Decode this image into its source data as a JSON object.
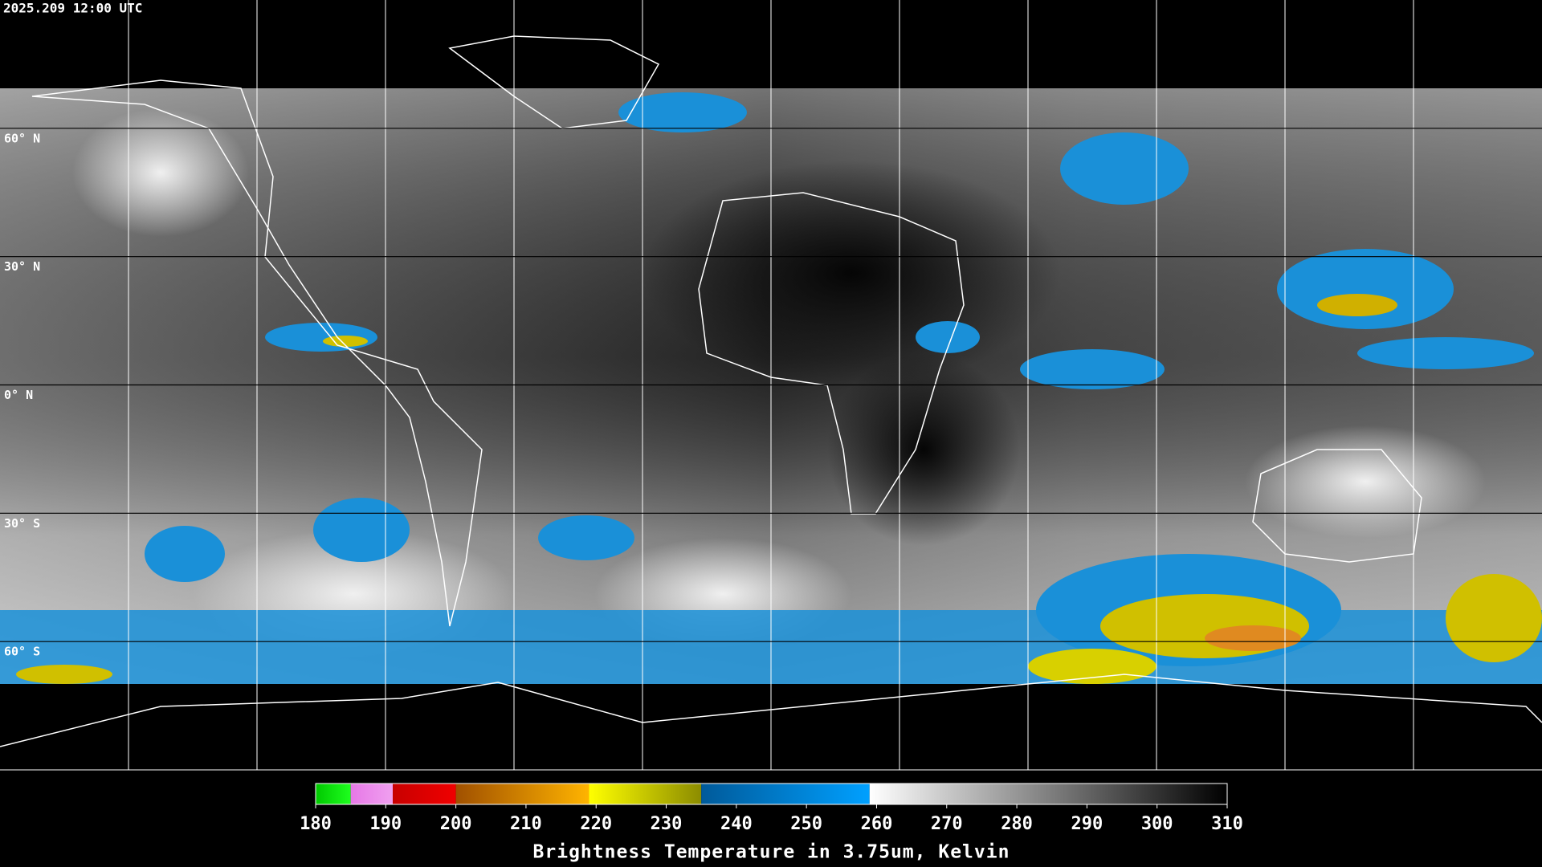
{
  "header": {
    "timestamp": "2025.209 12:00 UTC"
  },
  "map": {
    "latitudes": [
      {
        "value": 60,
        "label": "60° N"
      },
      {
        "value": 30,
        "label": "30° N"
      },
      {
        "value": 0,
        "label": "0° N"
      },
      {
        "value": -30,
        "label": "30° S"
      },
      {
        "value": -60,
        "label": "60° S"
      }
    ]
  },
  "colorbar": {
    "label": "Brightness Temperature in 3.75um, Kelvin",
    "range": [
      180,
      310
    ],
    "ticks": [
      180,
      190,
      200,
      210,
      220,
      230,
      240,
      250,
      260,
      270,
      280,
      290,
      300,
      310
    ],
    "segments": [
      {
        "from": 180,
        "to": 185,
        "colors": [
          "#00c800",
          "#1eff1e"
        ]
      },
      {
        "from": 185,
        "to": 191,
        "colors": [
          "#e678e6",
          "#f0a0f0"
        ]
      },
      {
        "from": 191,
        "to": 200,
        "colors": [
          "#c80000",
          "#f00000"
        ]
      },
      {
        "from": 200,
        "to": 219,
        "colors": [
          "#a05000",
          "#ffb400"
        ]
      },
      {
        "from": 219,
        "to": 235,
        "colors": [
          "#ffff00",
          "#8c8c00"
        ]
      },
      {
        "from": 235,
        "to": 259,
        "colors": [
          "#005a9a",
          "#00a0ff"
        ]
      },
      {
        "from": 259,
        "to": 310,
        "colors": [
          "#ffffff",
          "#000000"
        ]
      }
    ]
  }
}
